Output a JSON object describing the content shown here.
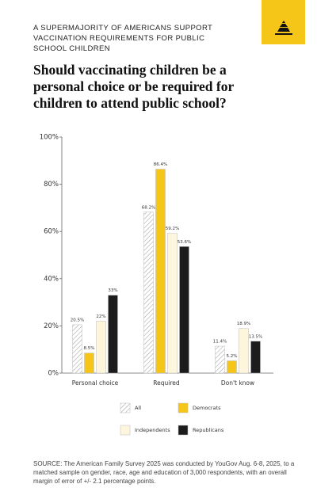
{
  "kicker": "A SUPERMAJORITY OF AMERICANS SUPPORT VACCINATION REQUIREMENTS FOR PUBLIC SCHOOL CHILDREN",
  "title": "Should vaccinating children be a personal choice or be required for children to attend public school?",
  "source": "SOURCE: The American Family Survey 2025 was conducted by YouGov Aug. 6-8, 2025, to a matched sample on gender, race, age and education of 3,000 respondents, with an overall margin of error of +/- 2.1 percentage points.",
  "chart_data": {
    "type": "bar",
    "categories": [
      "Personal choice",
      "Required",
      "Don't know"
    ],
    "series": [
      {
        "name": "All",
        "color": "#ffffff",
        "pattern": "hatch",
        "values": [
          20.5,
          68.2,
          11.4
        ],
        "value_labels": [
          "20.5%",
          "68.2%",
          "11.4%"
        ]
      },
      {
        "name": "Democrats",
        "color": "#f5c518",
        "values": [
          8.5,
          86.4,
          5.2
        ],
        "value_labels": [
          "8.5%",
          "86.4%",
          "5.2%"
        ]
      },
      {
        "name": "Independents",
        "color": "#fdf6dc",
        "values": [
          22,
          59.2,
          18.9
        ],
        "value_labels": [
          "22%",
          "59.2%",
          "18.9%"
        ]
      },
      {
        "name": "Republicans",
        "color": "#1c1c1c",
        "values": [
          33,
          53.6,
          13.5
        ],
        "value_labels": [
          "33%",
          "53.6%",
          "13.5%"
        ]
      }
    ],
    "ylim": [
      0,
      100
    ],
    "yticks": [
      {
        "value": 0,
        "label": "0%"
      },
      {
        "value": 20,
        "label": "20%"
      },
      {
        "value": 40,
        "label": "40%"
      },
      {
        "value": 60,
        "label": "60%"
      },
      {
        "value": 80,
        "label": "80%"
      },
      {
        "value": 100,
        "label": "100%"
      }
    ],
    "grid": false
  }
}
